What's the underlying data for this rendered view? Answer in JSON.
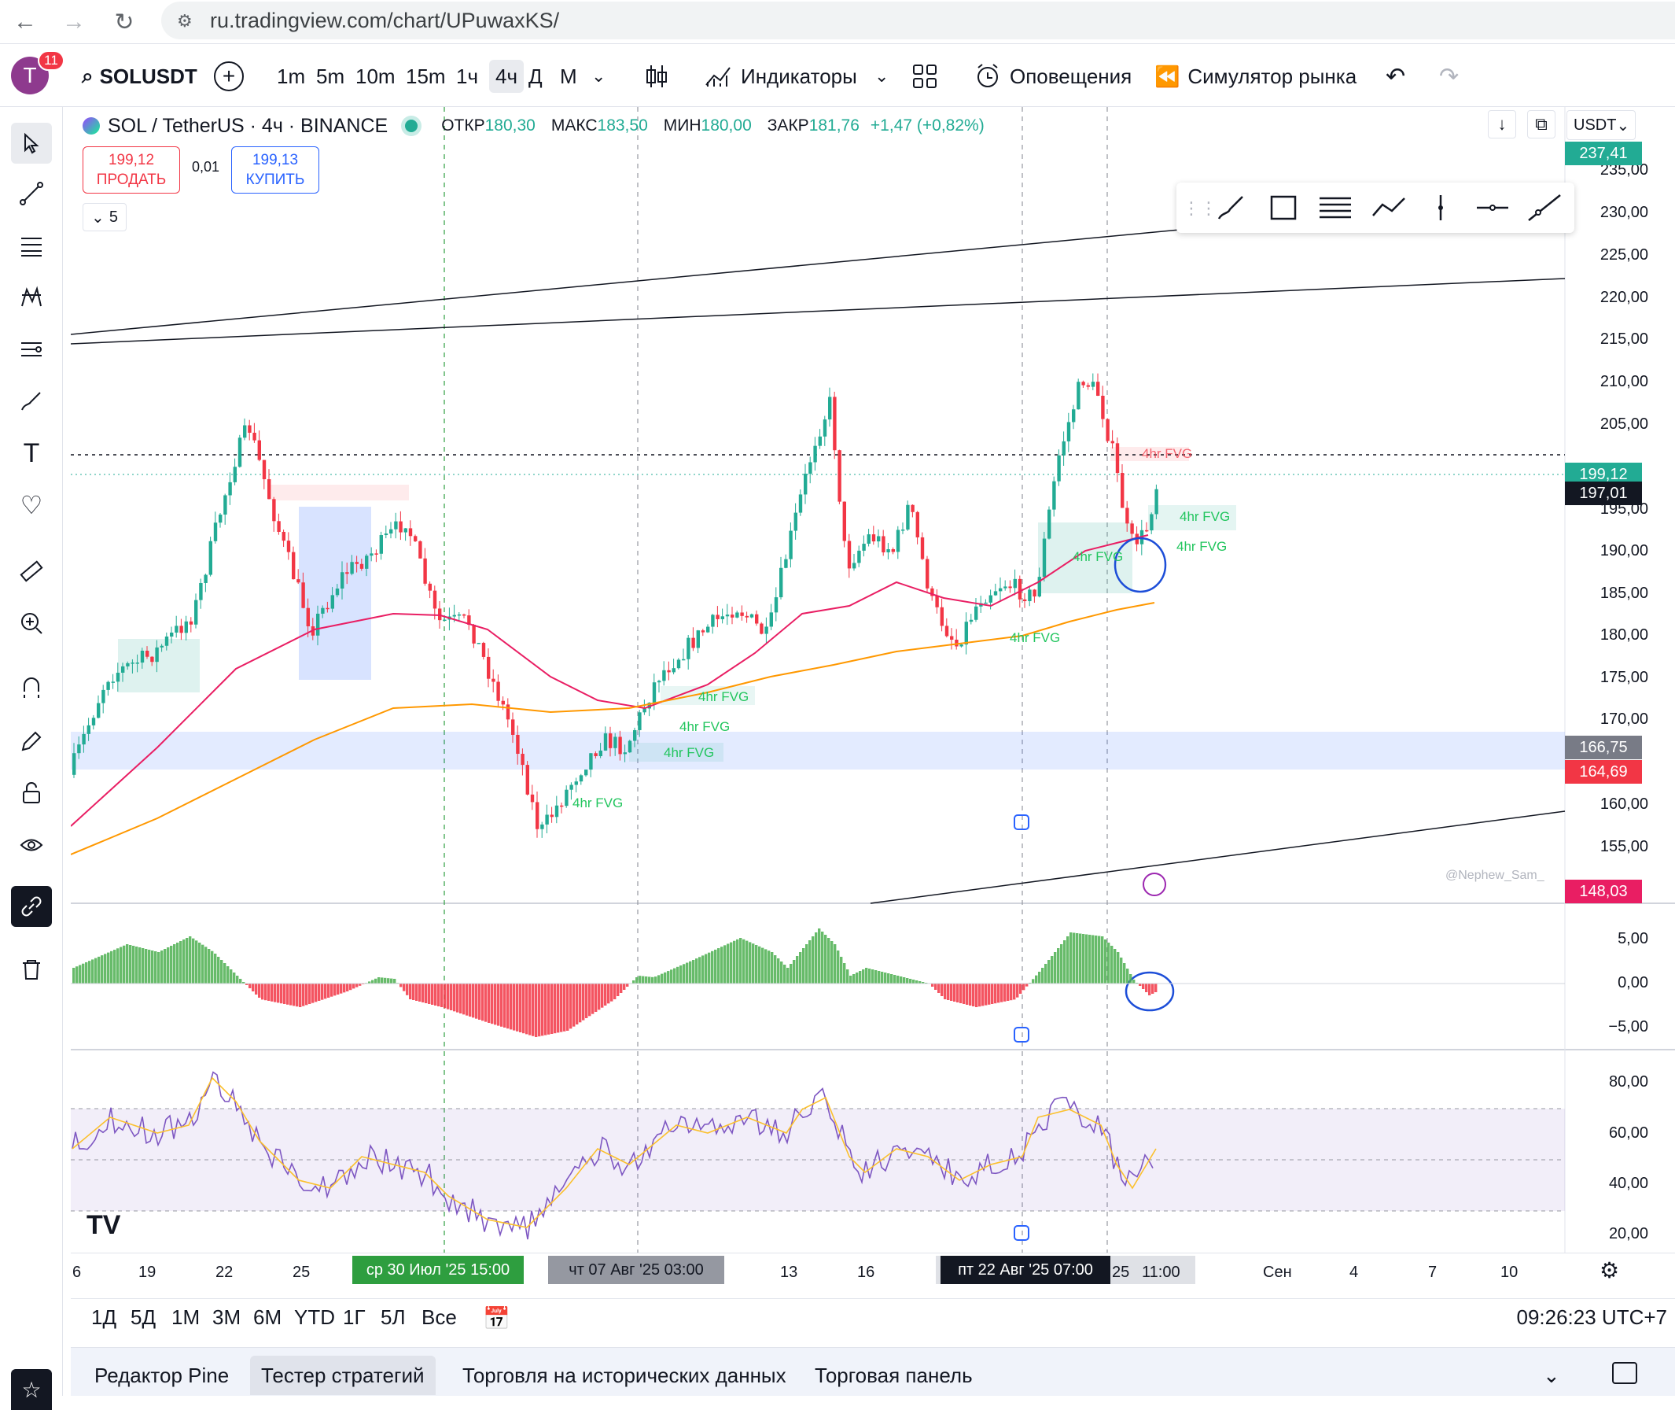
{
  "browser": {
    "url": "ru.tradingview.com/chart/UPuwaxKS/"
  },
  "topbar": {
    "avatar_letter": "T",
    "notif_count": "11",
    "symbol": "SOLUSDT",
    "timeframes": [
      "1m",
      "5m",
      "10m",
      "15m",
      "1ч",
      "4ч",
      "Д",
      "М"
    ],
    "selected_timeframe": "4ч",
    "indicators_label": "Индикаторы",
    "alerts_label": "Оповещения",
    "replay_label": "Симулятор рынка"
  },
  "legend": {
    "title": "SOL / TetherUS · 4ч · BINANCE",
    "open_label": "ОТКР",
    "open": "180,30",
    "high_label": "МАКС",
    "high": "183,50",
    "low_label": "МИН",
    "low": "180,00",
    "close_label": "ЗАКР",
    "close": "181,76",
    "change": "+1,47 (+0,82%)"
  },
  "trade": {
    "sell_price": "199,12",
    "sell_label": "ПРОДАТЬ",
    "spread": "0,01",
    "buy_price": "199,13",
    "buy_label": "КУПИТЬ",
    "indicators_count": "5"
  },
  "currency": "USDT",
  "price_axis": [
    "235,00",
    "230,00",
    "225,00",
    "220,00",
    "215,00",
    "210,00",
    "205,00",
    "195,00",
    "190,00",
    "185,00",
    "180,00",
    "175,00",
    "170,00",
    "160,00",
    "155,00"
  ],
  "price_badges": {
    "top": "237,41",
    "last1": "199,12",
    "last2": "197,01",
    "level1": "166,75",
    "level2": "164,69",
    "low": "148,03"
  },
  "osc_axis": [
    "5,00",
    "0,00",
    "−5,00"
  ],
  "rsi_axis": [
    "80,00",
    "60,00",
    "40,00",
    "20,00"
  ],
  "fvg_labels": [
    "4hr FVG",
    "4hr FVG",
    "4hr FVG",
    "4hr FVG",
    "4hr FVG",
    "4hr FVG",
    "4hr FVG",
    "4hr FVG",
    "4hr FVG"
  ],
  "watermark": "@Nephew_Sam_",
  "time_axis": {
    "labels": [
      "6",
      "19",
      "22",
      "25",
      "13",
      "16",
      "25",
      "Сен",
      "4",
      "7",
      "10"
    ],
    "crosshair1": "ср 30 Июл '25   15:00",
    "crosshair2": "чт 07 Авг '25   03:00",
    "crosshair3": "пт 22 Авг '25   07:00",
    "crosshair4": "11:00"
  },
  "ranges": [
    "1Д",
    "5Д",
    "1М",
    "3М",
    "6М",
    "YTD",
    "1Г",
    "5Л",
    "Все"
  ],
  "clock": "09:26:23 UTC+7",
  "bottom_tabs": [
    "Редактор Pine",
    "Тестер стратегий",
    "Торговля на исторических данных",
    "Торговая панель"
  ],
  "colors": {
    "up": "#22ab94",
    "down": "#f23645",
    "ma_fast": "#e91e63",
    "ma_slow": "#ff9800",
    "rsi": "#7e57c2",
    "rsi_ma": "#fbc02d"
  }
}
